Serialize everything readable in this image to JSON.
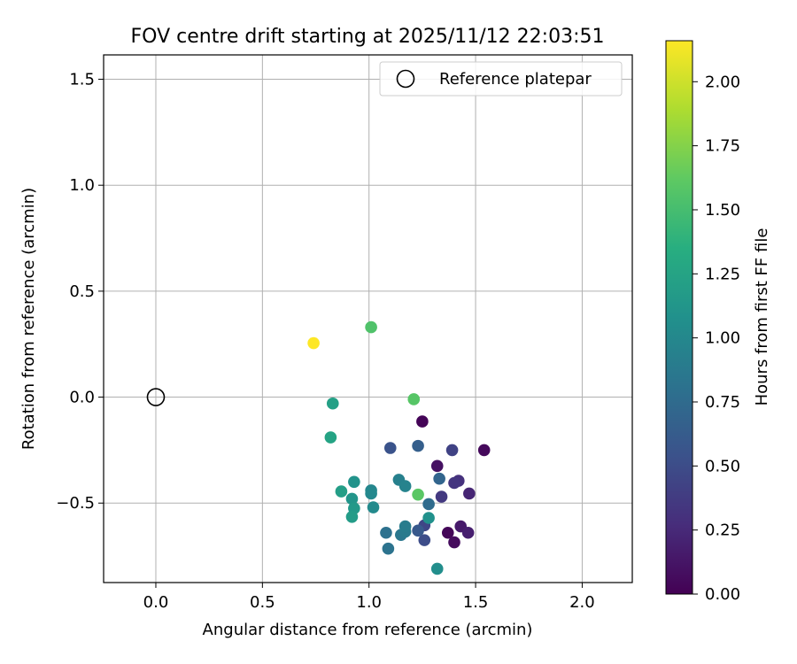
{
  "chart_data": {
    "type": "scatter",
    "title": "FOV centre drift starting at 2025/11/12 22:03:51",
    "xlabel": "Angular distance from reference (arcmin)",
    "ylabel": "Rotation from reference (arcmin)",
    "xlim": [
      -0.245,
      2.235
    ],
    "ylim": [
      -0.875,
      1.615
    ],
    "xticks": [
      0.0,
      0.5,
      1.0,
      1.5,
      2.0
    ],
    "xtick_labels": [
      "0.0",
      "0.5",
      "1.0",
      "1.5",
      "2.0"
    ],
    "yticks": [
      -0.5,
      0.0,
      0.5,
      1.0,
      1.5
    ],
    "ytick_labels": [
      "−0.5",
      "0.0",
      "0.5",
      "1.0",
      "1.5"
    ],
    "grid": true,
    "legend": {
      "position": "top-right",
      "entries": [
        {
          "label": "Reference platepar",
          "marker": "open-circle"
        }
      ]
    },
    "reference_point": {
      "x": 0.0,
      "y": 0.0
    },
    "colorbar": {
      "label": "Hours from first FF file",
      "range": [
        0.0,
        2.16
      ],
      "colormap": "viridis",
      "ticks": [
        0.0,
        0.25,
        0.5,
        0.75,
        1.0,
        1.25,
        1.5,
        1.75,
        2.0
      ],
      "tick_labels": [
        "0.00",
        "0.25",
        "0.50",
        "0.75",
        "1.00",
        "1.25",
        "1.50",
        "1.75",
        "2.00"
      ]
    },
    "points": [
      {
        "x": 1.25,
        "y": -0.115,
        "t": 0.02
      },
      {
        "x": 1.54,
        "y": -0.25,
        "t": 0.05
      },
      {
        "x": 1.32,
        "y": -0.325,
        "t": 0.1
      },
      {
        "x": 1.37,
        "y": -0.64,
        "t": 0.03
      },
      {
        "x": 1.4,
        "y": -0.685,
        "t": 0.06
      },
      {
        "x": 1.43,
        "y": -0.61,
        "t": 0.15
      },
      {
        "x": 1.465,
        "y": -0.64,
        "t": 0.18
      },
      {
        "x": 1.47,
        "y": -0.455,
        "t": 0.22
      },
      {
        "x": 1.42,
        "y": -0.395,
        "t": 0.3
      },
      {
        "x": 1.4,
        "y": -0.405,
        "t": 0.33
      },
      {
        "x": 1.34,
        "y": -0.47,
        "t": 0.36
      },
      {
        "x": 1.39,
        "y": -0.25,
        "t": 0.42
      },
      {
        "x": 1.26,
        "y": -0.605,
        "t": 0.45
      },
      {
        "x": 1.26,
        "y": -0.675,
        "t": 0.5
      },
      {
        "x": 1.1,
        "y": -0.24,
        "t": 0.55
      },
      {
        "x": 1.23,
        "y": -0.63,
        "t": 0.6
      },
      {
        "x": 1.23,
        "y": -0.23,
        "t": 0.65
      },
      {
        "x": 1.33,
        "y": -0.385,
        "t": 0.7
      },
      {
        "x": 1.28,
        "y": -0.505,
        "t": 0.75
      },
      {
        "x": 1.08,
        "y": -0.64,
        "t": 0.8
      },
      {
        "x": 1.09,
        "y": -0.715,
        "t": 0.82
      },
      {
        "x": 1.15,
        "y": -0.65,
        "t": 0.85
      },
      {
        "x": 1.17,
        "y": -0.635,
        "t": 0.88
      },
      {
        "x": 1.17,
        "y": -0.61,
        "t": 0.9
      },
      {
        "x": 1.14,
        "y": -0.39,
        "t": 0.93
      },
      {
        "x": 1.17,
        "y": -0.42,
        "t": 0.96
      },
      {
        "x": 1.01,
        "y": -0.44,
        "t": 0.98
      },
      {
        "x": 1.01,
        "y": -0.455,
        "t": 1.0
      },
      {
        "x": 1.02,
        "y": -0.52,
        "t": 1.02
      },
      {
        "x": 1.32,
        "y": -0.81,
        "t": 1.05
      },
      {
        "x": 1.28,
        "y": -0.57,
        "t": 1.08
      },
      {
        "x": 0.93,
        "y": -0.4,
        "t": 1.1
      },
      {
        "x": 0.92,
        "y": -0.48,
        "t": 1.12
      },
      {
        "x": 0.93,
        "y": -0.525,
        "t": 1.15
      },
      {
        "x": 0.92,
        "y": -0.565,
        "t": 1.18
      },
      {
        "x": 0.87,
        "y": -0.445,
        "t": 1.2
      },
      {
        "x": 0.83,
        "y": -0.03,
        "t": 1.22
      },
      {
        "x": 0.82,
        "y": -0.19,
        "t": 1.25
      },
      {
        "x": 1.01,
        "y": 0.33,
        "t": 1.55
      },
      {
        "x": 1.21,
        "y": -0.01,
        "t": 1.58
      },
      {
        "x": 1.23,
        "y": -0.46,
        "t": 1.6
      },
      {
        "x": 0.74,
        "y": 0.255,
        "t": 2.16
      }
    ]
  }
}
